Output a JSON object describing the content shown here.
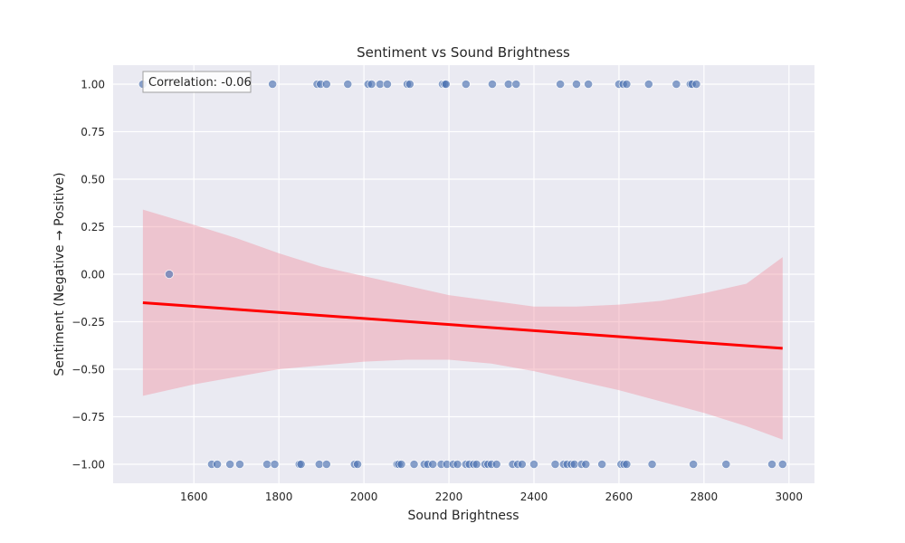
{
  "chart_data": {
    "type": "scatter",
    "title": "Sentiment vs Sound Brightness",
    "xlabel": "Sound Brightness",
    "ylabel": "Sentiment (Negative → Positive)",
    "xlim": [
      1410,
      3060
    ],
    "ylim": [
      -1.1,
      1.1
    ],
    "xticks": [
      1600,
      1800,
      2000,
      2200,
      2400,
      2600,
      2800,
      3000
    ],
    "yticks": [
      1.0,
      0.75,
      0.5,
      0.25,
      0.0,
      -0.25,
      -0.5,
      -0.75,
      -1.0
    ],
    "ytick_labels": [
      "1.00",
      "0.75",
      "0.50",
      "0.25",
      "0.00",
      "−0.25",
      "−0.50",
      "−0.75",
      "−1.00"
    ],
    "grid": true,
    "annotation": "Correlation: -0.06",
    "annotation_placement": "top-left",
    "colors": {
      "points": "#4c72b0",
      "trend_line": "#ff0000",
      "confidence_band": "#f08fa0",
      "plot_background": "#eaeaf2",
      "grid": "#ffffff"
    },
    "series": [
      {
        "values": [
          {
            "x": 1480,
            "y": 1
          },
          {
            "x": 1785,
            "y": 1
          },
          {
            "x": 1890,
            "y": 1
          },
          {
            "x": 1898,
            "y": 1
          },
          {
            "x": 1912,
            "y": 1
          },
          {
            "x": 1962,
            "y": 1
          },
          {
            "x": 2010,
            "y": 1
          },
          {
            "x": 2018,
            "y": 1
          },
          {
            "x": 2038,
            "y": 1
          },
          {
            "x": 2055,
            "y": 1
          },
          {
            "x": 2102,
            "y": 1
          },
          {
            "x": 2108,
            "y": 1
          },
          {
            "x": 2185,
            "y": 1
          },
          {
            "x": 2190,
            "y": 1
          },
          {
            "x": 2193,
            "y": 1
          },
          {
            "x": 2240,
            "y": 1
          },
          {
            "x": 2302,
            "y": 1
          },
          {
            "x": 2340,
            "y": 1
          },
          {
            "x": 2358,
            "y": 1
          },
          {
            "x": 2462,
            "y": 1
          },
          {
            "x": 2500,
            "y": 1
          },
          {
            "x": 2528,
            "y": 1
          },
          {
            "x": 2600,
            "y": 1
          },
          {
            "x": 2610,
            "y": 1
          },
          {
            "x": 2618,
            "y": 1
          },
          {
            "x": 2670,
            "y": 1
          },
          {
            "x": 2735,
            "y": 1
          },
          {
            "x": 2768,
            "y": 1
          },
          {
            "x": 2772,
            "y": 1
          },
          {
            "x": 2782,
            "y": 1
          },
          {
            "x": 1542,
            "y": 0
          },
          {
            "x": 1642,
            "y": -1
          },
          {
            "x": 1655,
            "y": -1
          },
          {
            "x": 1685,
            "y": -1
          },
          {
            "x": 1708,
            "y": -1
          },
          {
            "x": 1772,
            "y": -1
          },
          {
            "x": 1790,
            "y": -1
          },
          {
            "x": 1848,
            "y": -1
          },
          {
            "x": 1852,
            "y": -1
          },
          {
            "x": 1895,
            "y": -1
          },
          {
            "x": 1912,
            "y": -1
          },
          {
            "x": 1978,
            "y": -1
          },
          {
            "x": 1985,
            "y": -1
          },
          {
            "x": 2078,
            "y": -1
          },
          {
            "x": 2082,
            "y": -1
          },
          {
            "x": 2088,
            "y": -1
          },
          {
            "x": 2118,
            "y": -1
          },
          {
            "x": 2142,
            "y": -1
          },
          {
            "x": 2150,
            "y": -1
          },
          {
            "x": 2162,
            "y": -1
          },
          {
            "x": 2182,
            "y": -1
          },
          {
            "x": 2195,
            "y": -1
          },
          {
            "x": 2210,
            "y": -1
          },
          {
            "x": 2220,
            "y": -1
          },
          {
            "x": 2240,
            "y": -1
          },
          {
            "x": 2248,
            "y": -1
          },
          {
            "x": 2258,
            "y": -1
          },
          {
            "x": 2265,
            "y": -1
          },
          {
            "x": 2285,
            "y": -1
          },
          {
            "x": 2292,
            "y": -1
          },
          {
            "x": 2300,
            "y": -1
          },
          {
            "x": 2312,
            "y": -1
          },
          {
            "x": 2350,
            "y": -1
          },
          {
            "x": 2362,
            "y": -1
          },
          {
            "x": 2372,
            "y": -1
          },
          {
            "x": 2400,
            "y": -1
          },
          {
            "x": 2450,
            "y": -1
          },
          {
            "x": 2470,
            "y": -1
          },
          {
            "x": 2478,
            "y": -1
          },
          {
            "x": 2488,
            "y": -1
          },
          {
            "x": 2495,
            "y": -1
          },
          {
            "x": 2512,
            "y": -1
          },
          {
            "x": 2522,
            "y": -1
          },
          {
            "x": 2560,
            "y": -1
          },
          {
            "x": 2605,
            "y": -1
          },
          {
            "x": 2612,
            "y": -1
          },
          {
            "x": 2618,
            "y": -1
          },
          {
            "x": 2678,
            "y": -1
          },
          {
            "x": 2775,
            "y": -1
          },
          {
            "x": 2852,
            "y": -1
          },
          {
            "x": 2960,
            "y": -1
          },
          {
            "x": 2985,
            "y": -1
          }
        ]
      }
    ],
    "trend_line": {
      "x": [
        1480,
        2985
      ],
      "y": [
        -0.15,
        -0.39
      ]
    },
    "confidence_band": {
      "x": [
        1480,
        1600,
        1700,
        1800,
        1900,
        2000,
        2100,
        2200,
        2300,
        2400,
        2500,
        2600,
        2700,
        2800,
        2900,
        2985
      ],
      "lower": [
        -0.64,
        -0.58,
        -0.54,
        -0.5,
        -0.48,
        -0.46,
        -0.45,
        -0.45,
        -0.47,
        -0.51,
        -0.56,
        -0.61,
        -0.67,
        -0.73,
        -0.8,
        -0.87
      ],
      "upper": [
        0.34,
        0.26,
        0.19,
        0.11,
        0.04,
        -0.01,
        -0.06,
        -0.11,
        -0.14,
        -0.17,
        -0.17,
        -0.16,
        -0.14,
        -0.1,
        -0.05,
        0.09
      ]
    }
  }
}
